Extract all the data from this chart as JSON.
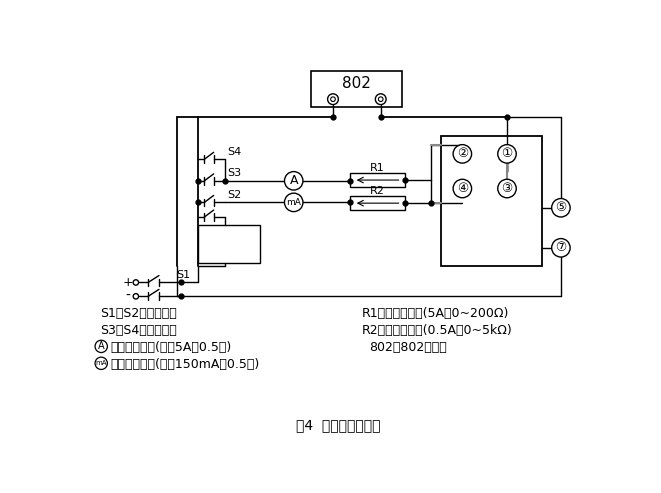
{
  "title": "图4  产品检测线路图",
  "bg_color": "#ffffff",
  "line_color": "#000000",
  "gray_color": "#888888",
  "legend_left": [
    "S1、S2：双刀开关",
    "S3、S4：单刀开关",
    "、直流电流表(量程5A、0.5级)",
    "、直流毫安表(量程150mA、0.5级)"
  ],
  "legend_right": [
    "R1、可调电阻器(5A、0~200Ω)",
    "R2、可调电阻器(0.5A、0~5kΩ)",
    "802、802毫秒表",
    ""
  ]
}
